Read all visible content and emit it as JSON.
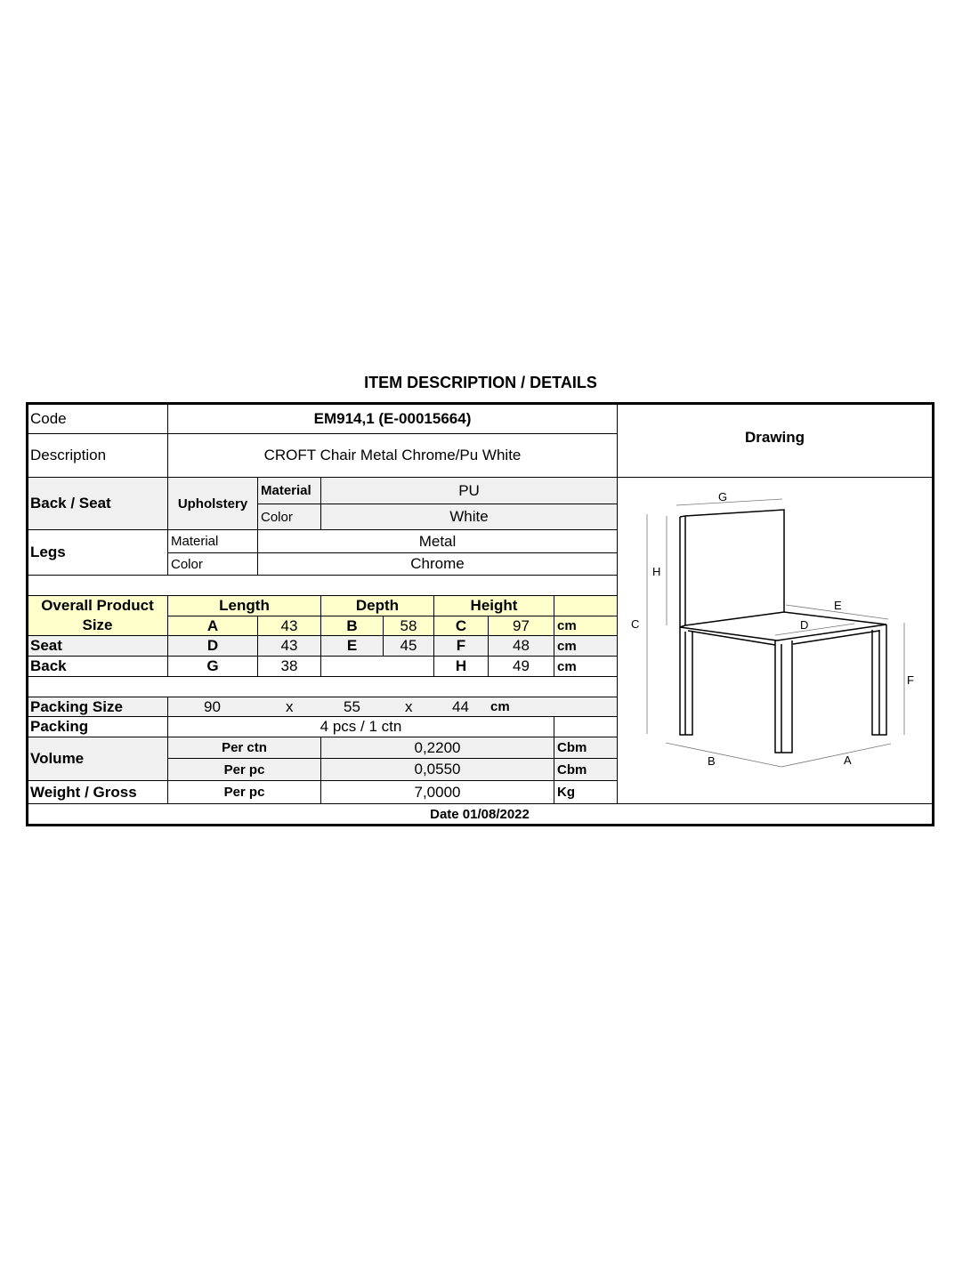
{
  "title": "ITEM DESCRIPTION / DETAILS",
  "code": {
    "label": "Code",
    "value": "EM914,1 (E-00015664)"
  },
  "description": {
    "label": "Description",
    "value": "CROFT Chair Metal Chrome/Pu White"
  },
  "drawing_label": "Drawing",
  "back_seat": {
    "label": "Back / Seat",
    "sub": "Upholstery",
    "material_label": "Material",
    "material": "PU",
    "color_label": "Color",
    "color": "White"
  },
  "legs": {
    "label": "Legs",
    "material_label": "Material",
    "material": "Metal",
    "color_label": "Color",
    "color": "Chrome"
  },
  "size": {
    "label1": "Overall Product",
    "label2": "Size",
    "length": "Length",
    "depth": "Depth",
    "height": "Height",
    "rows": [
      {
        "label": "",
        "c1": "A",
        "v1": "43",
        "c2": "B",
        "v2": "58",
        "c3": "C",
        "v3": "97",
        "unit": "cm"
      },
      {
        "label": "Seat",
        "c1": "D",
        "v1": "43",
        "c2": "E",
        "v2": "45",
        "c3": "F",
        "v3": "48",
        "unit": "cm"
      },
      {
        "label": "Back",
        "c1": "G",
        "v1": "38",
        "c2": "",
        "v2": "",
        "c3": "H",
        "v3": "49",
        "unit": "cm"
      }
    ]
  },
  "packing_size": {
    "label": "Packing Size",
    "l": "90",
    "x": "x",
    "w": "55",
    "h": "44",
    "unit": "cm"
  },
  "packing": {
    "label": "Packing",
    "value": "4 pcs / 1 ctn"
  },
  "volume": {
    "label": "Volume",
    "per_ctn_label": "Per ctn",
    "per_ctn": "0,2200",
    "per_pc_label": "Per pc",
    "per_pc": "0,0550",
    "unit": "Cbm"
  },
  "weight": {
    "label": "Weight / Gross",
    "per_label": "Per pc",
    "value": "7,0000",
    "unit": "Kg"
  },
  "date": "Date 01/08/2022",
  "drawing_letters": {
    "A": "A",
    "B": "B",
    "C": "C",
    "D": "D",
    "E": "E",
    "F": "F",
    "G": "G",
    "H": "H"
  },
  "colors": {
    "highlight": "#ffffcc",
    "shade": "#f0f0f0"
  }
}
